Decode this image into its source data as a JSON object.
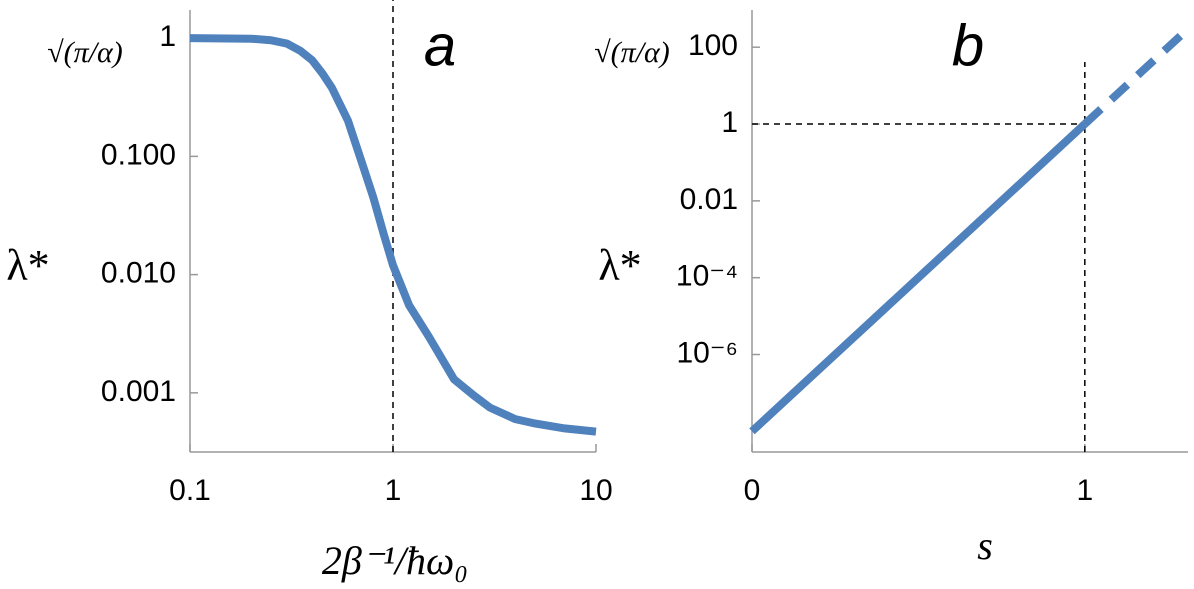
{
  "chart_data": [
    {
      "type": "line",
      "panel_label": "a",
      "y_top_label": "√(π/α)",
      "ylabel": "λ*",
      "xlabel": "2β⁻¹/ħω₀",
      "log_x": true,
      "log_y": true,
      "xlim": [
        0.1,
        10
      ],
      "ylim": [
        0.000316,
        1.73
      ],
      "xticks": [
        0.1,
        1,
        10
      ],
      "yticks": [
        1,
        {
          "value": 0.1,
          "label": "0.100"
        },
        {
          "value": 0.01,
          "label": "0.010"
        },
        0.001
      ],
      "ref_x": 1,
      "color": "#4f81bd",
      "series": [
        {
          "style": "solid",
          "x": [
            0.1,
            0.2,
            0.25,
            0.3,
            0.35,
            0.4,
            0.45,
            0.5,
            0.6,
            0.7,
            0.8,
            0.9,
            1,
            1.2,
            1.5,
            2,
            2.5,
            3,
            4,
            5,
            7,
            10
          ],
          "values": [
            1,
            0.99,
            0.96,
            0.9,
            0.78,
            0.65,
            0.5,
            0.38,
            0.2,
            0.09,
            0.045,
            0.022,
            0.012,
            0.0055,
            0.003,
            0.0013,
            0.00095,
            0.00075,
            0.0006,
            0.00055,
            0.0005,
            0.00047
          ]
        }
      ]
    },
    {
      "type": "line",
      "panel_label": "b",
      "y_top_label": "√(π/α)",
      "ylabel": "λ*",
      "xlabel": "s",
      "log_x": false,
      "log_y": true,
      "xlim": [
        0,
        1.31
      ],
      "ylim": [
        2.9e-09,
        930
      ],
      "xticks": [
        0,
        1
      ],
      "yticks": [
        100,
        1,
        0.01,
        {
          "value": 0.0001,
          "label": "10⁻⁴"
        },
        {
          "value": 1e-06,
          "label": "10⁻⁶"
        }
      ],
      "ref_x": 1,
      "ref_y": 1,
      "color": "#4f81bd",
      "series": [
        {
          "style": "solid",
          "x": [
            0,
            1
          ],
          "values": [
            1e-08,
            1
          ]
        },
        {
          "style": "dashed",
          "x": [
            1,
            1.3
          ],
          "values": [
            1,
            250
          ]
        }
      ]
    }
  ]
}
